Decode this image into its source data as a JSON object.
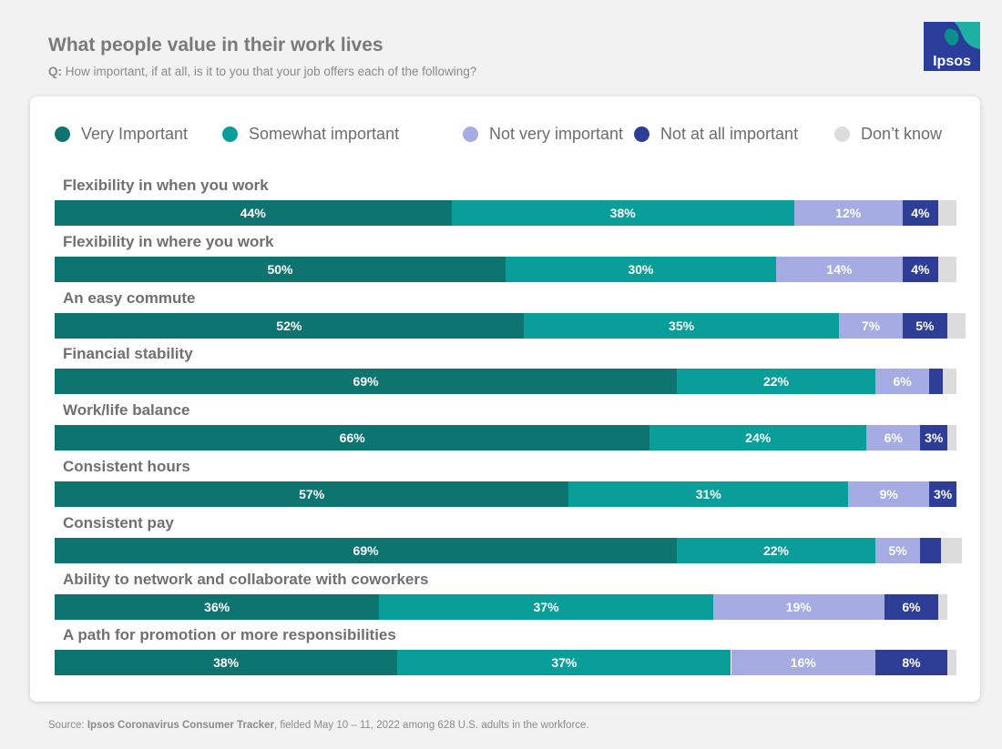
{
  "header": {
    "title": "What people value in their work lives",
    "question_label": "Q:",
    "question_text": "How important, if at all, is it to you that your job offers each of the following?"
  },
  "logo": {
    "text": "Ipsos",
    "icon": "ipsos-logo-icon"
  },
  "colors": {
    "very_important": "#0e7470",
    "somewhat_important": "#0a9e9a",
    "not_very_important": "#a4ace3",
    "not_at_all_important": "#2e3d96",
    "dont_know": "#dcdcdc"
  },
  "chart_data": {
    "type": "bar",
    "orientation": "horizontal",
    "stacked": true,
    "title": "What people value in their work lives",
    "subtitle": "How important, if at all, is it to you that your job offers each of the following?",
    "legend_position": "top",
    "categories": [
      "Flexibility in when you work",
      "Flexibility in where you work",
      "An easy commute",
      "Financial stability",
      "Work/life balance",
      "Consistent hours",
      "Consistent pay",
      "Ability to network and collaborate with coworkers",
      "A path for promotion or more responsibilities"
    ],
    "series": [
      {
        "name": "Very Important",
        "key": "very_important",
        "values": [
          44,
          50,
          52,
          69,
          66,
          57,
          69,
          36,
          38
        ],
        "labels": [
          "44%",
          "50%",
          "52%",
          "69%",
          "66%",
          "57%",
          "69%",
          "36%",
          "38%"
        ]
      },
      {
        "name": "Somewhat important",
        "key": "somewhat_important",
        "values": [
          38,
          30,
          35,
          22,
          24,
          31,
          22,
          37,
          37
        ],
        "labels": [
          "38%",
          "30%",
          "35%",
          "22%",
          "24%",
          "31%",
          "22%",
          "37%",
          "37%"
        ]
      },
      {
        "name": "Not very important",
        "key": "not_very_important",
        "values": [
          12,
          14,
          7,
          6,
          6,
          9,
          5,
          19,
          16
        ],
        "labels": [
          "12%",
          "14%",
          "7%",
          "6%",
          "6%",
          "9%",
          "5%",
          "19%",
          "16%"
        ]
      },
      {
        "name": "Not at all important",
        "key": "not_at_all_important",
        "values": [
          4,
          4,
          5,
          1.5,
          3,
          3,
          2.3,
          6,
          8
        ],
        "labels": [
          "4%",
          "4%",
          "5%",
          "",
          "3%",
          "3%",
          "",
          "6%",
          "8%"
        ]
      },
      {
        "name": "Don’t know",
        "key": "dont_know",
        "values": [
          2,
          2,
          2,
          1.5,
          1,
          0,
          2.3,
          1,
          1
        ],
        "labels": [
          "",
          "",
          "",
          "",
          "",
          "",
          "",
          "",
          ""
        ]
      }
    ],
    "xlim": [
      0,
      100
    ],
    "unit": "%"
  },
  "footer": {
    "source_prefix": "Source: ",
    "source_name": "Ipsos Coronavirus Consumer Tracker",
    "source_rest": ", fielded May 10 – 11, 2022 among 628 U.S. adults in the workforce."
  }
}
